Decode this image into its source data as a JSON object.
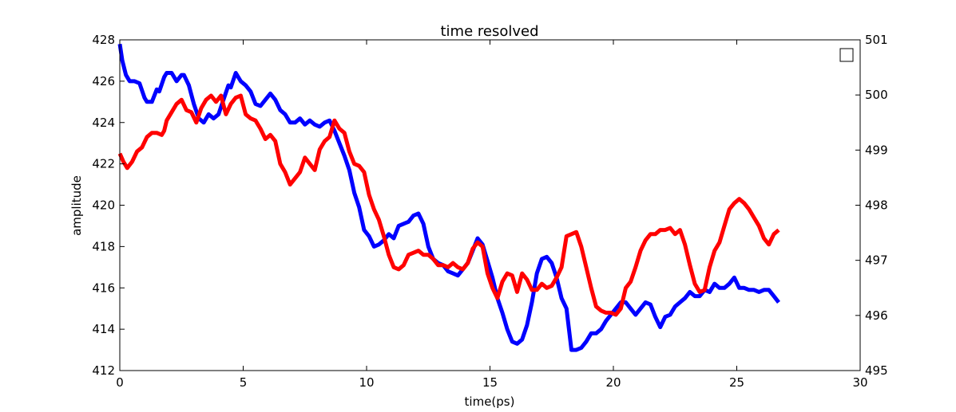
{
  "chart_data": {
    "type": "line",
    "title": "time resolved",
    "xlabel": "time(ps)",
    "ylabel": "amplitude",
    "y2label": "",
    "xlim": [
      0,
      30
    ],
    "ylim": [
      412,
      428
    ],
    "y2lim": [
      495,
      501
    ],
    "xticks": [
      0,
      5,
      10,
      15,
      20,
      25,
      30
    ],
    "yticks": [
      412,
      414,
      416,
      418,
      420,
      422,
      424,
      426,
      428
    ],
    "y2ticks": [
      495,
      496,
      497,
      498,
      499,
      500,
      501
    ],
    "grid": false,
    "legend": {
      "position": "top-right",
      "entries": []
    },
    "series": [
      {
        "color": "#0000ff",
        "axis": "left",
        "x": [
          0,
          0.1,
          0.25,
          0.4,
          0.6,
          0.8,
          1.0,
          1.1,
          1.3,
          1.5,
          1.6,
          1.8,
          1.9,
          2.1,
          2.3,
          2.5,
          2.6,
          2.8,
          3.0,
          3.2,
          3.4,
          3.6,
          3.8,
          4.0,
          4.2,
          4.4,
          4.5,
          4.7,
          4.9,
          5.1,
          5.3,
          5.5,
          5.7,
          5.9,
          6.1,
          6.3,
          6.5,
          6.7,
          6.9,
          7.1,
          7.3,
          7.5,
          7.7,
          7.9,
          8.1,
          8.3,
          8.5,
          8.7,
          8.9,
          9.1,
          9.3,
          9.5,
          9.7,
          9.9,
          10.1,
          10.3,
          10.5,
          10.7,
          10.9,
          11.1,
          11.3,
          11.5,
          11.7,
          11.9,
          12.1,
          12.3,
          12.5,
          12.7,
          12.9,
          13.1,
          13.3,
          13.5,
          13.7,
          13.9,
          14.1,
          14.3,
          14.5,
          14.7,
          14.9,
          15.1,
          15.3,
          15.5,
          15.7,
          15.9,
          16.1,
          16.3,
          16.5,
          16.7,
          16.9,
          17.1,
          17.3,
          17.5,
          17.7,
          17.9,
          18.1,
          18.3,
          18.5,
          18.7,
          18.9,
          19.1,
          19.3,
          19.5,
          19.7,
          19.9,
          20.1,
          20.3,
          20.5,
          20.7,
          20.9,
          21.1,
          21.3,
          21.5,
          21.7,
          21.9,
          22.1,
          22.3,
          22.5,
          22.7,
          22.9,
          23.1,
          23.3,
          23.5,
          23.7,
          23.9,
          24.1,
          24.3,
          24.5,
          24.7,
          24.9,
          25.1,
          25.3,
          25.5,
          25.7,
          25.9,
          26.1,
          26.3,
          26.5,
          26.7
        ],
        "y": [
          427.8,
          427.0,
          426.3,
          426.0,
          426.0,
          425.9,
          425.2,
          425.0,
          425.0,
          425.6,
          425.5,
          426.2,
          426.4,
          426.4,
          426.0,
          426.3,
          426.3,
          425.8,
          424.9,
          424.2,
          424.0,
          424.4,
          424.2,
          424.4,
          425.1,
          425.8,
          425.7,
          426.4,
          426.0,
          425.8,
          425.5,
          424.9,
          424.8,
          425.1,
          425.4,
          425.1,
          424.6,
          424.4,
          424.0,
          424.0,
          424.2,
          423.9,
          424.1,
          423.9,
          423.8,
          424.0,
          424.1,
          423.6,
          423.0,
          422.4,
          421.7,
          420.6,
          419.9,
          418.8,
          418.5,
          418.0,
          418.1,
          418.3,
          418.6,
          418.4,
          419.0,
          419.1,
          419.2,
          419.5,
          419.6,
          419.1,
          418.0,
          417.4,
          417.2,
          417.1,
          416.8,
          416.7,
          416.6,
          416.9,
          417.2,
          417.8,
          418.4,
          418.1,
          417.3,
          416.5,
          415.5,
          414.8,
          414.0,
          413.4,
          413.3,
          413.5,
          414.2,
          415.3,
          416.7,
          417.4,
          417.5,
          417.2,
          416.5,
          415.5,
          415.0,
          413.0,
          413.0,
          413.1,
          413.4,
          413.8,
          413.8,
          414.0,
          414.4,
          414.7,
          415.0,
          415.3,
          415.3,
          415.0,
          414.7,
          415.0,
          415.3,
          415.2,
          414.6,
          414.1,
          414.6,
          414.7,
          415.1,
          415.3,
          415.5,
          415.8,
          415.6,
          415.6,
          415.9,
          415.8,
          416.2,
          416.0,
          416.0,
          416.2,
          416.5,
          416.0,
          416.0,
          415.9,
          415.9,
          415.8,
          415.9,
          415.9,
          415.6,
          415.3
        ],
        "marker": "none"
      },
      {
        "color": "#ff0000",
        "axis": "left",
        "x": [
          0,
          0.15,
          0.3,
          0.5,
          0.7,
          0.9,
          1.1,
          1.3,
          1.5,
          1.7,
          1.8,
          1.9,
          2.1,
          2.3,
          2.5,
          2.7,
          2.9,
          3.1,
          3.3,
          3.5,
          3.7,
          3.9,
          4.1,
          4.3,
          4.5,
          4.7,
          4.9,
          5.1,
          5.3,
          5.5,
          5.7,
          5.9,
          6.1,
          6.3,
          6.5,
          6.7,
          6.9,
          7.1,
          7.3,
          7.5,
          7.7,
          7.9,
          8.1,
          8.3,
          8.5,
          8.7,
          8.9,
          9.1,
          9.3,
          9.5,
          9.7,
          9.9,
          10.1,
          10.3,
          10.5,
          10.7,
          10.9,
          11.1,
          11.3,
          11.5,
          11.7,
          11.9,
          12.1,
          12.3,
          12.5,
          12.7,
          12.9,
          13.1,
          13.3,
          13.5,
          13.7,
          13.9,
          14.1,
          14.3,
          14.5,
          14.7,
          14.9,
          15.1,
          15.3,
          15.5,
          15.7,
          15.9,
          16.1,
          16.3,
          16.5,
          16.7,
          16.9,
          17.1,
          17.3,
          17.5,
          17.7,
          17.9,
          18.1,
          18.3,
          18.5,
          18.7,
          18.9,
          19.1,
          19.3,
          19.5,
          19.7,
          19.9,
          20.1,
          20.3,
          20.5,
          20.7,
          20.9,
          21.1,
          21.3,
          21.5,
          21.7,
          21.9,
          22.1,
          22.3,
          22.5,
          22.7,
          22.9,
          23.1,
          23.3,
          23.5,
          23.7,
          23.9,
          24.1,
          24.3,
          24.5,
          24.7,
          24.9,
          25.1,
          25.3,
          25.5,
          25.7,
          25.9,
          26.1,
          26.3,
          26.5,
          26.7
        ],
        "y": [
          422.5,
          422.1,
          421.8,
          422.1,
          422.6,
          422.8,
          423.3,
          423.5,
          423.5,
          423.4,
          423.6,
          424.1,
          424.5,
          424.9,
          425.1,
          424.6,
          424.5,
          424.0,
          424.7,
          425.1,
          425.3,
          425.0,
          425.3,
          424.4,
          424.9,
          425.2,
          425.3,
          424.4,
          424.2,
          424.1,
          423.7,
          423.2,
          423.4,
          423.1,
          422.0,
          421.6,
          421.0,
          421.3,
          421.6,
          422.3,
          422.0,
          421.7,
          422.7,
          423.1,
          423.3,
          424.1,
          423.7,
          423.5,
          422.6,
          422.0,
          421.9,
          421.6,
          420.5,
          419.8,
          419.3,
          418.5,
          417.6,
          417.0,
          416.9,
          417.1,
          417.6,
          417.7,
          417.8,
          417.6,
          417.6,
          417.4,
          417.1,
          417.1,
          417.0,
          417.2,
          417.0,
          416.9,
          417.2,
          417.9,
          418.2,
          418.0,
          416.7,
          416.0,
          415.5,
          416.3,
          416.7,
          416.6,
          415.8,
          416.7,
          416.4,
          415.9,
          415.9,
          416.2,
          416.0,
          416.1,
          416.5,
          417.0,
          418.5,
          418.6,
          418.7,
          418.0,
          417.0,
          416.0,
          415.1,
          414.9,
          414.8,
          414.8,
          414.7,
          415.0,
          416.0,
          416.3,
          417.0,
          417.8,
          418.3,
          418.6,
          418.6,
          418.8,
          418.8,
          418.9,
          418.6,
          418.8,
          418.1,
          417.1,
          416.2,
          415.8,
          415.9,
          417.0,
          417.8,
          418.2,
          419.0,
          419.8,
          420.1,
          420.3,
          420.1,
          419.8,
          419.4,
          419.0,
          418.4,
          418.1,
          418.6,
          418.8
        ],
        "marker": "none"
      }
    ]
  }
}
